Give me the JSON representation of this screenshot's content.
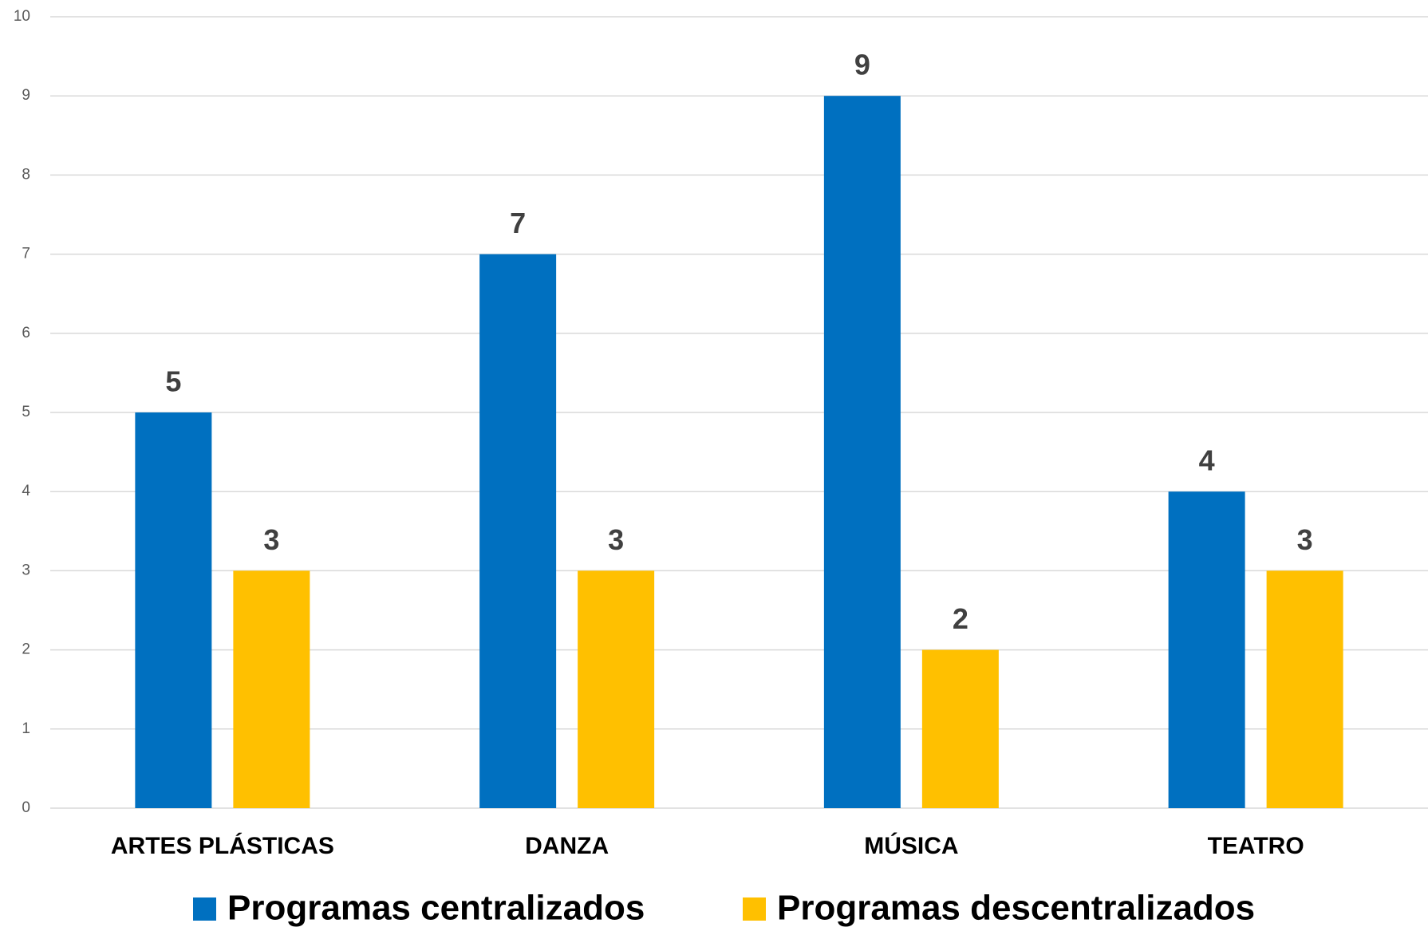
{
  "chart_data": {
    "type": "bar",
    "categories": [
      "ARTES PLÁSTICAS",
      "DANZA",
      "MÚSICA",
      "TEATRO"
    ],
    "series": [
      {
        "name": "Programas centralizados",
        "color": "#0070c0",
        "values": [
          5,
          7,
          9,
          4
        ]
      },
      {
        "name": "Programas descentralizados",
        "color": "#ffc000",
        "values": [
          3,
          3,
          2,
          3
        ]
      }
    ],
    "ylim": [
      0,
      10
    ],
    "yticks": [
      0,
      1,
      2,
      3,
      4,
      5,
      6,
      7,
      8,
      9,
      10
    ],
    "grid": true,
    "legend": "bottom"
  }
}
